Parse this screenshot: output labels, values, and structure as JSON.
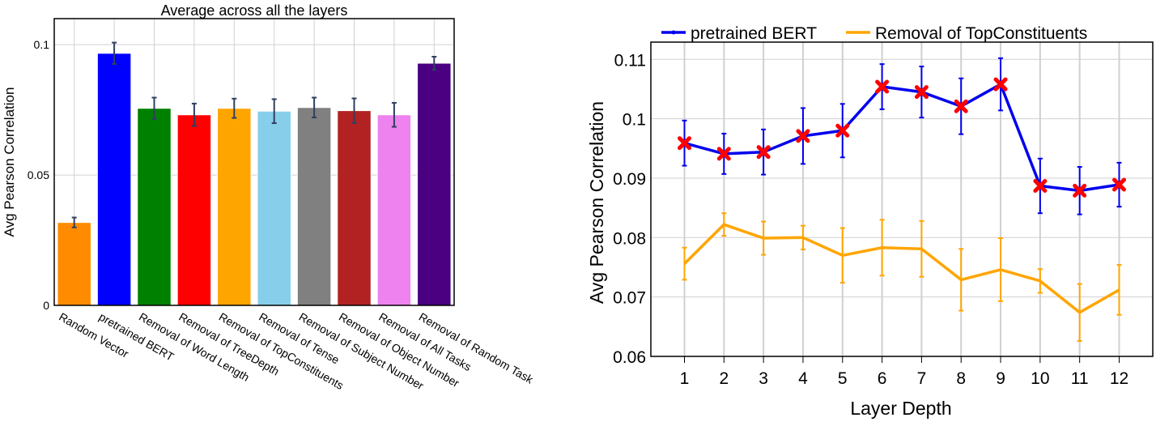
{
  "chart_data": [
    {
      "type": "bar",
      "title": "Average across all the layers",
      "xlabel": "",
      "ylabel": "Avg Pearson Correlation",
      "ylim": [
        0,
        0.11
      ],
      "yticks": [
        0,
        0.05,
        0.1
      ],
      "ytick_labels": [
        "0",
        "0.05",
        "0.1"
      ],
      "grid": true,
      "categories": [
        "Random Vector",
        "pretrained BERT",
        "Removal of Word Length",
        "Removal of TreeDepth",
        "Removal of TopConstituents",
        "Removal of Tense",
        "Removal of Subject Number",
        "Removal of Object Number",
        "Removal of All Tasks",
        "Removal of Random Task"
      ],
      "values": [
        0.0318,
        0.0967,
        0.0756,
        0.0731,
        0.0756,
        0.0745,
        0.0759,
        0.0747,
        0.0731,
        0.0929
      ],
      "errors": [
        0.0019,
        0.0041,
        0.0041,
        0.0043,
        0.0037,
        0.0046,
        0.0038,
        0.0047,
        0.0046,
        0.0025
      ],
      "colors": [
        "#ff8c00",
        "#0000ff",
        "#008000",
        "#ff0000",
        "#ffa500",
        "#87ceeb",
        "#808080",
        "#b22222",
        "#ee82ee",
        "#4b0082"
      ],
      "error_color": "#2f3f5f"
    },
    {
      "type": "line",
      "title": "",
      "xlabel": "Layer Depth",
      "ylabel": "Avg Pearson Correlation",
      "x": [
        1,
        2,
        3,
        4,
        5,
        6,
        7,
        8,
        9,
        10,
        11,
        12
      ],
      "xtick_labels": [
        "1",
        "2",
        "3",
        "4",
        "5",
        "6",
        "7",
        "8",
        "9",
        "10",
        "11",
        "12"
      ],
      "xlim": [
        0.15,
        12.85
      ],
      "ylim": [
        0.06,
        0.1129
      ],
      "yticks": [
        0.06,
        0.07,
        0.08,
        0.09,
        0.1,
        0.11
      ],
      "ytick_labels": [
        "0.06",
        "0.07",
        "0.08",
        "0.09",
        "0.1",
        "0.11"
      ],
      "grid": true,
      "legend_position": "top",
      "series": [
        {
          "name": "pretrained BERT",
          "color": "#0000ee",
          "marker_color": "#ff0000",
          "values": [
            0.0959,
            0.0941,
            0.0944,
            0.0971,
            0.098,
            0.1054,
            0.1045,
            0.1021,
            0.1058,
            0.0887,
            0.0879,
            0.0889
          ],
          "errors": [
            0.0038,
            0.0034,
            0.0038,
            0.0047,
            0.0045,
            0.0038,
            0.0043,
            0.0047,
            0.0044,
            0.0046,
            0.004,
            0.0037
          ]
        },
        {
          "name": "Removal of TopConstituents",
          "color": "#ffa500",
          "values": [
            0.0756,
            0.0822,
            0.0799,
            0.08,
            0.077,
            0.0783,
            0.0781,
            0.0729,
            0.0746,
            0.0727,
            0.0674,
            0.0712
          ],
          "errors": [
            0.0027,
            0.0019,
            0.0028,
            0.002,
            0.0046,
            0.0047,
            0.0047,
            0.0052,
            0.0053,
            0.002,
            0.0048,
            0.0042
          ]
        }
      ]
    }
  ]
}
